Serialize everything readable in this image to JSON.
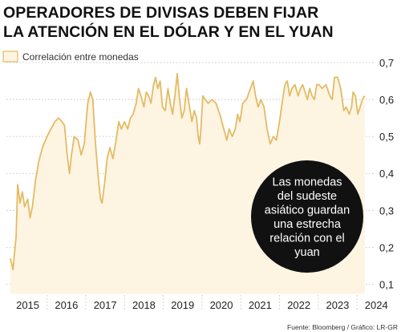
{
  "header": {
    "title_line1": "OPERADORES DE DIVISAS DEBEN FIJAR",
    "title_line2": "LA ATENCIÓN EN EL DÓLAR Y EN EL YUAN"
  },
  "footer": {
    "source": "Fuente: Bloomberg / Gráfico: LR-GR"
  },
  "colors": {
    "line": "#e3bb63",
    "fill": "#fdf4e2",
    "grid": "#b9b9b9",
    "callout_bg": "#111111",
    "callout_text": "#ffffff"
  },
  "chart_data": {
    "type": "area",
    "legend": "Correlación entre monedas",
    "callout": [
      "Las monedas",
      "del sudeste",
      "asiático guardan",
      "una estrecha",
      "relación con el",
      "yuan"
    ],
    "x_ticks": [
      "2015",
      "2016",
      "2017",
      "2018",
      "2019",
      "2020",
      "2021",
      "2022",
      "2023",
      "2024"
    ],
    "y_ticks": [
      "0,1",
      "0,2",
      "0,3",
      "0,4",
      "0,5",
      "0,6",
      "0,7"
    ],
    "ylim": [
      0.1,
      0.7
    ],
    "xlim": [
      2015.0,
      2024.0
    ],
    "series": [
      {
        "values": [
          [
            2015.05,
            0.17
          ],
          [
            2015.12,
            0.14
          ],
          [
            2015.2,
            0.23
          ],
          [
            2015.24,
            0.37
          ],
          [
            2015.3,
            0.32
          ],
          [
            2015.36,
            0.35
          ],
          [
            2015.42,
            0.31
          ],
          [
            2015.5,
            0.33
          ],
          [
            2015.56,
            0.28
          ],
          [
            2015.62,
            0.31
          ],
          [
            2015.7,
            0.38
          ],
          [
            2015.78,
            0.43
          ],
          [
            2015.88,
            0.47
          ],
          [
            2016.0,
            0.5
          ],
          [
            2016.1,
            0.52
          ],
          [
            2016.2,
            0.54
          ],
          [
            2016.3,
            0.55
          ],
          [
            2016.38,
            0.54
          ],
          [
            2016.45,
            0.53
          ],
          [
            2016.52,
            0.45
          ],
          [
            2016.58,
            0.4
          ],
          [
            2016.63,
            0.45
          ],
          [
            2016.7,
            0.5
          ],
          [
            2016.8,
            0.49
          ],
          [
            2016.88,
            0.45
          ],
          [
            2016.96,
            0.48
          ],
          [
            2017.05,
            0.59
          ],
          [
            2017.12,
            0.62
          ],
          [
            2017.18,
            0.6
          ],
          [
            2017.25,
            0.48
          ],
          [
            2017.32,
            0.39
          ],
          [
            2017.38,
            0.33
          ],
          [
            2017.42,
            0.32
          ],
          [
            2017.48,
            0.37
          ],
          [
            2017.55,
            0.44
          ],
          [
            2017.62,
            0.47
          ],
          [
            2017.7,
            0.44
          ],
          [
            2017.78,
            0.49
          ],
          [
            2017.85,
            0.54
          ],
          [
            2017.92,
            0.52
          ],
          [
            2018.0,
            0.54
          ],
          [
            2018.08,
            0.52
          ],
          [
            2018.15,
            0.55
          ],
          [
            2018.22,
            0.56
          ],
          [
            2018.3,
            0.59
          ],
          [
            2018.36,
            0.63
          ],
          [
            2018.42,
            0.61
          ],
          [
            2018.5,
            0.58
          ],
          [
            2018.56,
            0.62
          ],
          [
            2018.62,
            0.61
          ],
          [
            2018.68,
            0.59
          ],
          [
            2018.75,
            0.64
          ],
          [
            2018.8,
            0.66
          ],
          [
            2018.86,
            0.63
          ],
          [
            2018.92,
            0.65
          ],
          [
            2018.98,
            0.58
          ],
          [
            2019.05,
            0.57
          ],
          [
            2019.12,
            0.63
          ],
          [
            2019.18,
            0.59
          ],
          [
            2019.24,
            0.56
          ],
          [
            2019.3,
            0.61
          ],
          [
            2019.36,
            0.67
          ],
          [
            2019.42,
            0.6
          ],
          [
            2019.48,
            0.55
          ],
          [
            2019.54,
            0.57
          ],
          [
            2019.6,
            0.63
          ],
          [
            2019.66,
            0.59
          ],
          [
            2019.74,
            0.54
          ],
          [
            2019.8,
            0.57
          ],
          [
            2019.86,
            0.55
          ],
          [
            2019.9,
            0.5
          ],
          [
            2019.94,
            0.48
          ],
          [
            2019.97,
            0.52
          ],
          [
            2020.02,
            0.61
          ],
          [
            2020.08,
            0.6
          ],
          [
            2020.16,
            0.59
          ],
          [
            2020.26,
            0.6
          ],
          [
            2020.36,
            0.59
          ],
          [
            2020.46,
            0.56
          ],
          [
            2020.56,
            0.52
          ],
          [
            2020.64,
            0.49
          ],
          [
            2020.7,
            0.52
          ],
          [
            2020.78,
            0.5
          ],
          [
            2020.86,
            0.52
          ],
          [
            2020.92,
            0.56
          ],
          [
            2020.98,
            0.54
          ],
          [
            2021.05,
            0.59
          ],
          [
            2021.15,
            0.6
          ],
          [
            2021.25,
            0.63
          ],
          [
            2021.32,
            0.65
          ],
          [
            2021.38,
            0.61
          ],
          [
            2021.45,
            0.58
          ],
          [
            2021.52,
            0.6
          ],
          [
            2021.6,
            0.58
          ],
          [
            2021.68,
            0.52
          ],
          [
            2021.76,
            0.48
          ],
          [
            2021.84,
            0.5
          ],
          [
            2021.92,
            0.49
          ],
          [
            2022.0,
            0.54
          ],
          [
            2022.08,
            0.6
          ],
          [
            2022.14,
            0.64
          ],
          [
            2022.2,
            0.65
          ],
          [
            2022.26,
            0.61
          ],
          [
            2022.32,
            0.63
          ],
          [
            2022.4,
            0.64
          ],
          [
            2022.48,
            0.61
          ],
          [
            2022.54,
            0.63
          ],
          [
            2022.6,
            0.64
          ],
          [
            2022.66,
            0.62
          ],
          [
            2022.72,
            0.6
          ],
          [
            2022.78,
            0.63
          ],
          [
            2022.84,
            0.61
          ],
          [
            2022.9,
            0.6
          ],
          [
            2022.96,
            0.64
          ],
          [
            2023.02,
            0.64
          ],
          [
            2023.1,
            0.63
          ],
          [
            2023.2,
            0.64
          ],
          [
            2023.3,
            0.61
          ],
          [
            2023.36,
            0.6
          ],
          [
            2023.42,
            0.66
          ],
          [
            2023.5,
            0.66
          ],
          [
            2023.58,
            0.63
          ],
          [
            2023.66,
            0.57
          ],
          [
            2023.72,
            0.58
          ],
          [
            2023.8,
            0.56
          ],
          [
            2023.86,
            0.58
          ],
          [
            2023.9,
            0.62
          ],
          [
            2023.96,
            0.61
          ],
          [
            2024.02,
            0.56
          ],
          [
            2024.08,
            0.58
          ],
          [
            2024.14,
            0.6
          ],
          [
            2024.2,
            0.61
          ]
        ]
      }
    ]
  }
}
